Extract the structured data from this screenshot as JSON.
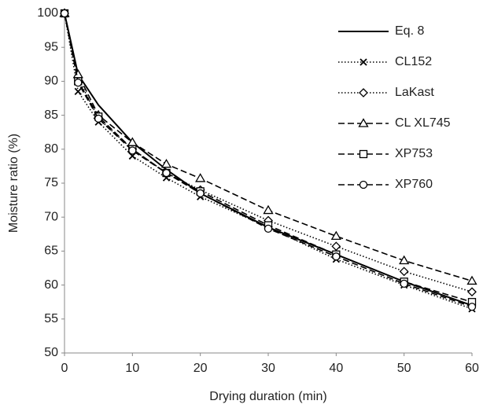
{
  "chart_data": {
    "type": "line",
    "x_label": "Drying duration (min)",
    "y_label": "Moisture ratio (%)",
    "x": [
      0,
      2,
      5,
      10,
      15,
      20,
      30,
      40,
      50,
      60
    ],
    "series": [
      {
        "name": "Eq. 8",
        "color": "#000000",
        "line_style": "solid",
        "marker": "none",
        "values": [
          100,
          91,
          86.5,
          81,
          77,
          73.5,
          68.5,
          64.5,
          60.5,
          57
        ]
      },
      {
        "name": "CL152",
        "color": "#000000",
        "line_style": "dotted",
        "marker": "x",
        "values": [
          100,
          88.5,
          84,
          79,
          75.8,
          73,
          68.5,
          63.8,
          60,
          56.5
        ]
      },
      {
        "name": "LaKast",
        "color": "#000000",
        "line_style": "dotted",
        "marker": "diamond",
        "values": [
          100,
          90.5,
          84.5,
          80,
          76.5,
          74,
          69.5,
          65.7,
          62,
          59
        ]
      },
      {
        "name": "CL XL745",
        "color": "#000000",
        "line_style": "dashed",
        "marker": "triangle",
        "values": [
          100,
          91,
          85,
          81,
          77.8,
          75.7,
          71,
          67.2,
          63.6,
          60.6
        ]
      },
      {
        "name": "XP753",
        "color": "#000000",
        "line_style": "dashed",
        "marker": "square",
        "values": [
          100,
          90,
          84.8,
          80,
          76.5,
          73.8,
          68.8,
          64.5,
          60.5,
          57.5
        ]
      },
      {
        "name": "XP760",
        "color": "#000000",
        "line_style": "dashed",
        "marker": "circle",
        "values": [
          100,
          89.8,
          84.5,
          79.8,
          76.5,
          73.5,
          68.3,
          64.2,
          60.2,
          56.8
        ]
      }
    ],
    "xlim": [
      0,
      60
    ],
    "xticks": [
      0,
      10,
      20,
      30,
      40,
      50,
      60
    ],
    "ylim": [
      50,
      100
    ],
    "yticks": [
      50,
      55,
      60,
      65,
      70,
      75,
      80,
      85,
      90,
      95,
      100
    ],
    "grid": false,
    "legend_position": "upper-right"
  }
}
